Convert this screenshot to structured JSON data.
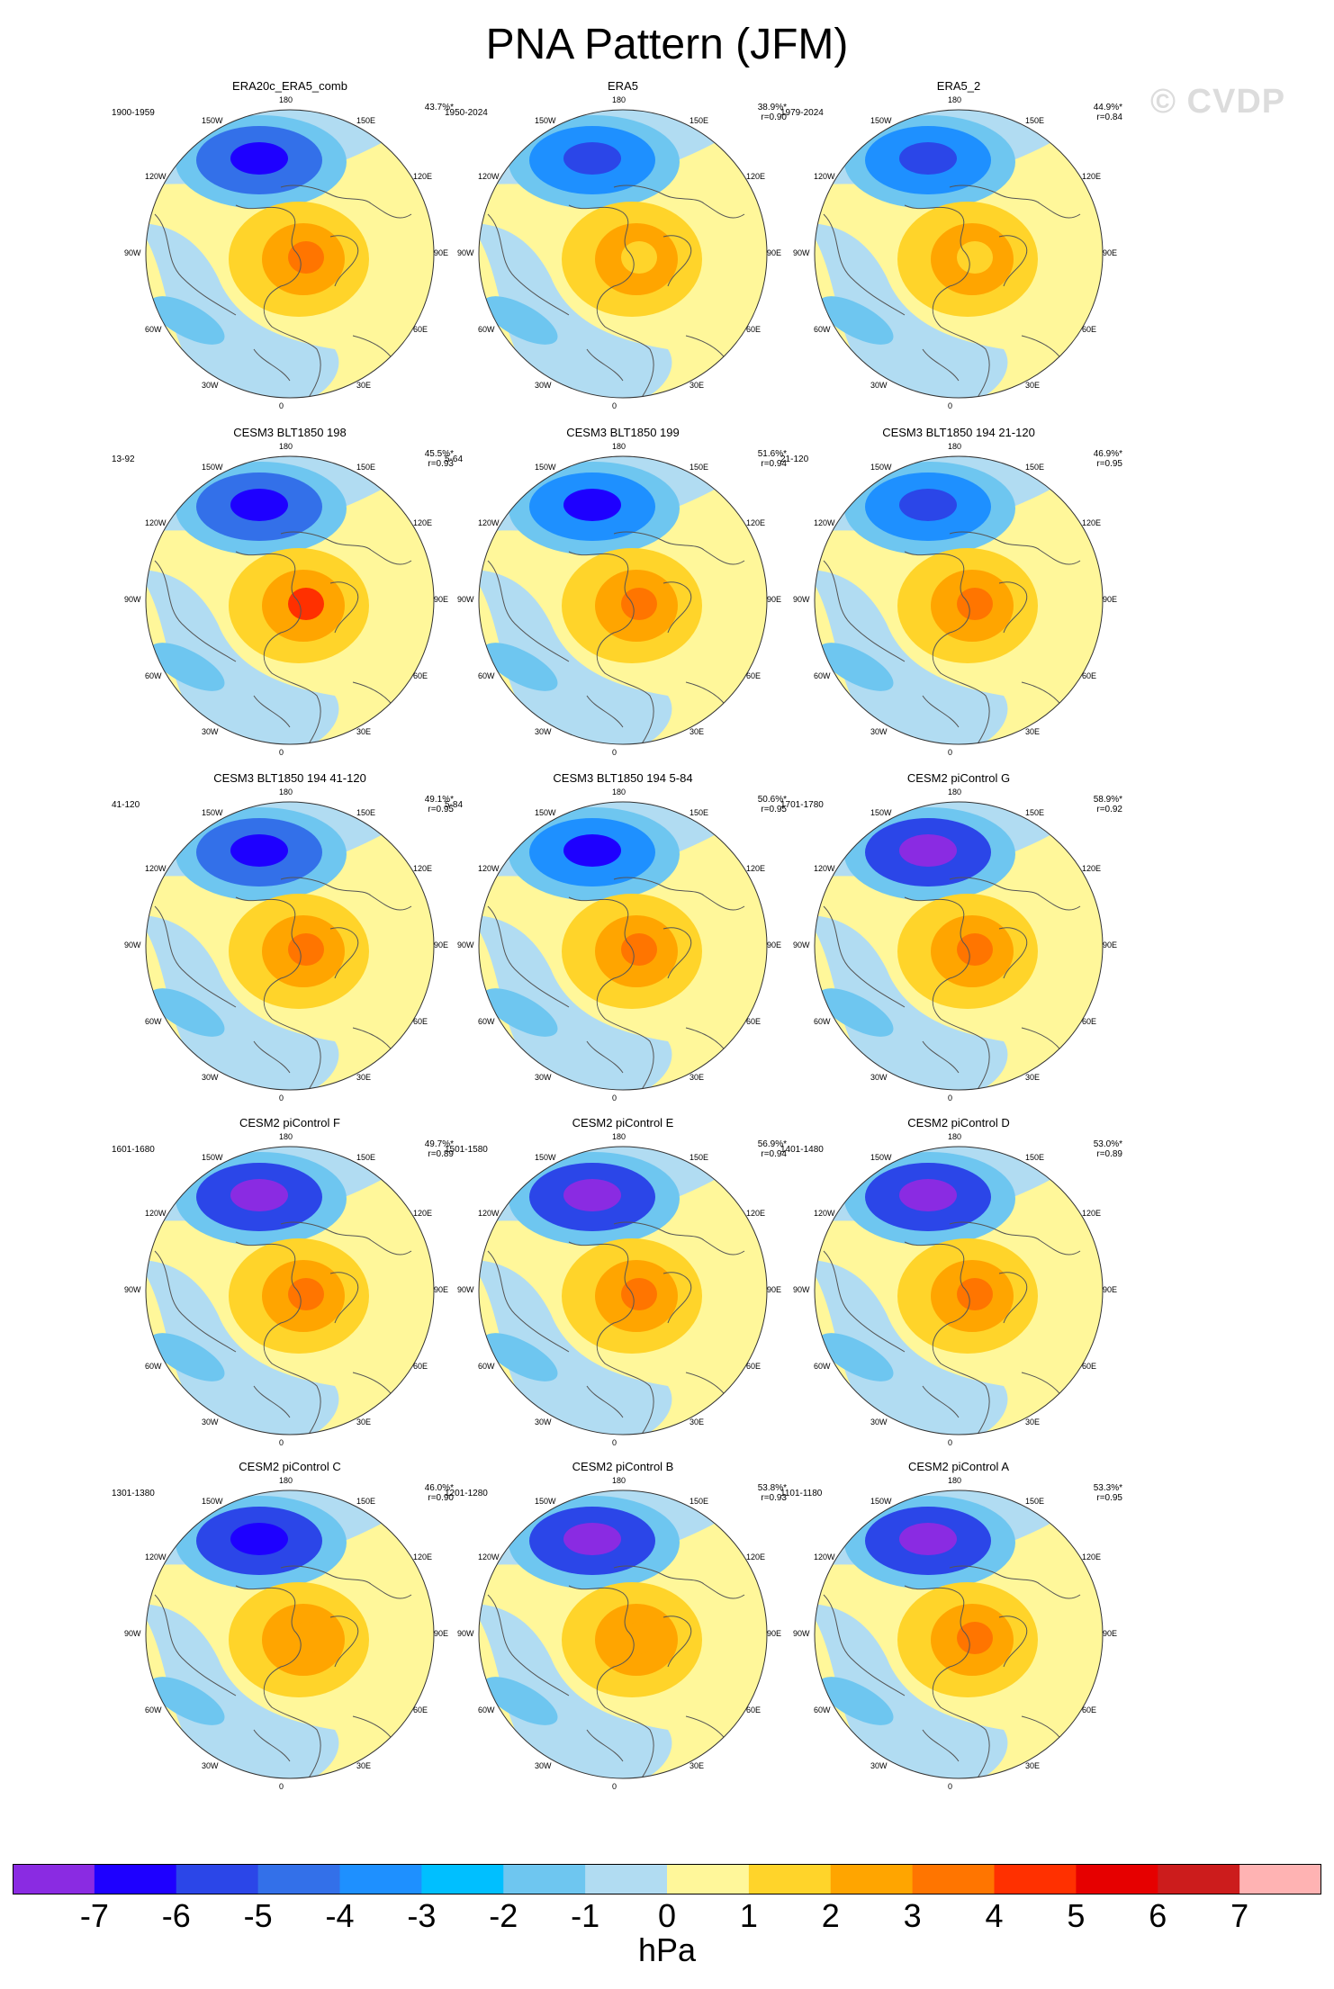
{
  "title": "PNA Pattern (JFM)",
  "watermark": "© CVDP",
  "lon_labels": [
    "180",
    "150E",
    "120E",
    "90E",
    "60E",
    "30E",
    "0",
    "30W",
    "60W",
    "90W",
    "120W",
    "150W"
  ],
  "colorbar": {
    "unit": "hPa",
    "ticks": [
      "-7",
      "-6",
      "-5",
      "-4",
      "-3",
      "-2",
      "-1",
      "0",
      "1",
      "2",
      "3",
      "4",
      "5",
      "6",
      "7"
    ],
    "colors": [
      "#8a2be2",
      "#1e00ff",
      "#2b46e8",
      "#3370e9",
      "#1e90ff",
      "#00bfff",
      "#6ec6f0",
      "#b1dcf2",
      "#fff79a",
      "#ffd42a",
      "#ffa500",
      "#ff7500",
      "#ff3000",
      "#e60000",
      "#cc1c1c",
      "#ffb3b3"
    ]
  },
  "panels": [
    {
      "title": "ERA20c_ERA5_comb",
      "period": "1900-1959",
      "pct": "43.7%*",
      "r": "",
      "neg": "#3370e9",
      "pos": "#ff7500",
      "negInner": "#1e00ff"
    },
    {
      "title": "ERA5",
      "period": "1950-2024",
      "pct": "38.9%*",
      "r": "r=0.90",
      "neg": "#1e90ff",
      "pos": "#ffd42a",
      "negInner": "#2b46e8"
    },
    {
      "title": "ERA5_2",
      "period": "1979-2024",
      "pct": "44.9%*",
      "r": "r=0.84",
      "neg": "#1e90ff",
      "pos": "#ffd42a",
      "negInner": "#2b46e8"
    },
    {
      "title": "CESM3 BLT1850 198",
      "period": "13-92",
      "pct": "45.5%*",
      "r": "r=0.93",
      "neg": "#3370e9",
      "pos": "#ff3000",
      "negInner": "#1e00ff"
    },
    {
      "title": "CESM3 BLT1850 199",
      "period": "5-64",
      "pct": "51.6%*",
      "r": "r=0.94",
      "neg": "#1e90ff",
      "pos": "#ff7500",
      "negInner": "#1e00ff"
    },
    {
      "title": "CESM3 BLT1850 194 21-120",
      "period": "21-120",
      "pct": "46.9%*",
      "r": "r=0.95",
      "neg": "#1e90ff",
      "pos": "#ff7500",
      "negInner": "#2b46e8"
    },
    {
      "title": "CESM3 BLT1850 194 41-120",
      "period": "41-120",
      "pct": "49.1%*",
      "r": "r=0.95",
      "neg": "#3370e9",
      "pos": "#ff7500",
      "negInner": "#1e00ff"
    },
    {
      "title": "CESM3 BLT1850 194 5-84",
      "period": "5-84",
      "pct": "50.6%*",
      "r": "r=0.95",
      "neg": "#1e90ff",
      "pos": "#ff7500",
      "negInner": "#1e00ff"
    },
    {
      "title": "CESM2 piControl G",
      "period": "1701-1780",
      "pct": "58.9%*",
      "r": "r=0.92",
      "neg": "#2b46e8",
      "pos": "#ff7500",
      "negInner": "#8a2be2"
    },
    {
      "title": "CESM2 piControl F",
      "period": "1601-1680",
      "pct": "49.7%*",
      "r": "r=0.89",
      "neg": "#2b46e8",
      "pos": "#ff7500",
      "negInner": "#8a2be2"
    },
    {
      "title": "CESM2 piControl E",
      "period": "1501-1580",
      "pct": "56.9%*",
      "r": "r=0.94",
      "neg": "#2b46e8",
      "pos": "#ff7500",
      "negInner": "#8a2be2"
    },
    {
      "title": "CESM2 piControl D",
      "period": "1401-1480",
      "pct": "53.0%*",
      "r": "r=0.89",
      "neg": "#2b46e8",
      "pos": "#ff7500",
      "negInner": "#8a2be2"
    },
    {
      "title": "CESM2 piControl C",
      "period": "1301-1380",
      "pct": "46.0%*",
      "r": "r=0.90",
      "neg": "#2b46e8",
      "pos": "#ffa500",
      "negInner": "#1e00ff"
    },
    {
      "title": "CESM2 piControl B",
      "period": "1201-1280",
      "pct": "53.8%*",
      "r": "r=0.93",
      "neg": "#2b46e8",
      "pos": "#ffa500",
      "negInner": "#8a2be2"
    },
    {
      "title": "CESM2 piControl A",
      "period": "1101-1180",
      "pct": "53.3%*",
      "r": "r=0.95",
      "neg": "#2b46e8",
      "pos": "#ff7500",
      "negInner": "#8a2be2"
    }
  ]
}
